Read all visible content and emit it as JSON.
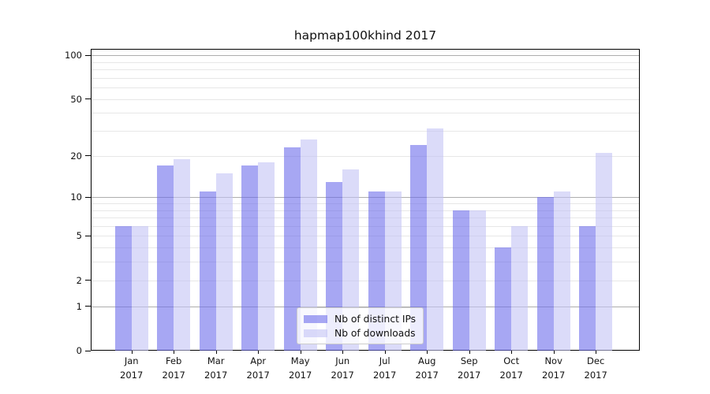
{
  "title": "hapmap100khind 2017",
  "colors": {
    "distinct_ips_bar": "rgba(108,108,235,0.6)",
    "downloads_bar": "rgba(195,195,245,0.6)",
    "grid_decade": "#adadad",
    "grid_minor": "#e7e7e7",
    "spine": "#000000"
  },
  "legend": {
    "items": [
      {
        "label": "Nb of distinct IPs",
        "series": "distinct_ips"
      },
      {
        "label": "Nb of downloads",
        "series": "downloads"
      }
    ]
  },
  "y_axis": {
    "tick_labels": [
      "100",
      "50",
      "20",
      "10",
      "5",
      "2",
      "1",
      "0"
    ],
    "tick_values": [
      100,
      50,
      20,
      10,
      5,
      2,
      1,
      0
    ]
  },
  "x_axis": {
    "year": "2017",
    "months": [
      "Jan",
      "Feb",
      "Mar",
      "Apr",
      "May",
      "Jun",
      "Jul",
      "Aug",
      "Sep",
      "Oct",
      "Nov",
      "Dec"
    ]
  },
  "chart_data": {
    "type": "bar",
    "title": "hapmap100khind 2017",
    "categories": [
      "Jan 2017",
      "Feb 2017",
      "Mar 2017",
      "Apr 2017",
      "May 2017",
      "Jun 2017",
      "Jul 2017",
      "Aug 2017",
      "Sep 2017",
      "Oct 2017",
      "Nov 2017",
      "Dec 2017"
    ],
    "series": [
      {
        "name": "Nb of distinct IPs",
        "values": [
          6,
          17,
          11,
          17,
          23,
          13,
          11,
          24,
          8,
          4,
          10,
          6
        ]
      },
      {
        "name": "Nb of downloads",
        "values": [
          6,
          19,
          15,
          18,
          26,
          16,
          11,
          31,
          8,
          6,
          11,
          21
        ]
      }
    ],
    "yscale": "log1p",
    "ylim": [
      0,
      111
    ],
    "yticks": [
      0,
      1,
      2,
      5,
      10,
      20,
      50,
      100
    ],
    "grid": "on",
    "legend_position": "lower center"
  }
}
